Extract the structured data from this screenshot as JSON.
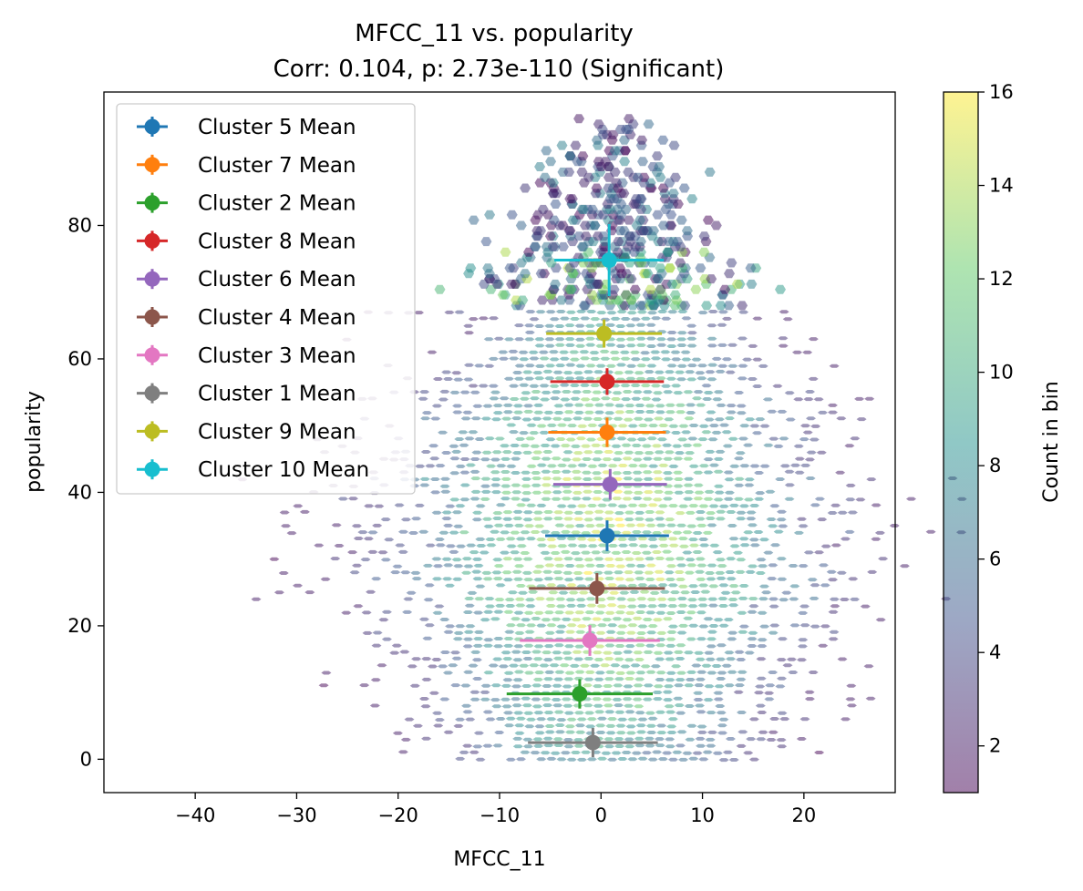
{
  "chart_data": {
    "type": "scatter",
    "title": "MFCC_11 vs. popularity",
    "subtitle": "Corr: 0.104, p: 2.73e-110 (Significant)",
    "xlabel": "MFCC_11",
    "ylabel": "popularity",
    "xlim": [
      -49,
      29
    ],
    "ylim": [
      -5,
      100
    ],
    "xticks": [
      -40,
      -30,
      -20,
      -10,
      0,
      10,
      20
    ],
    "xtick_labels": [
      "−40",
      "−30",
      "−20",
      "−10",
      "0",
      "10",
      "20"
    ],
    "yticks": [
      0,
      20,
      40,
      60,
      80
    ],
    "ytick_labels": [
      "0",
      "20",
      "40",
      "60",
      "80"
    ],
    "grid": false,
    "legend_position": "upper-left",
    "background": {
      "kind": "hexbin",
      "cmap": "viridis",
      "alpha": 0.5,
      "note": "density of MFCC_11 vs popularity, horizontal bands at integer popularity values"
    },
    "colorbar": {
      "label": "Count in bin",
      "range": [
        1,
        16
      ],
      "ticks": [
        2,
        4,
        6,
        8,
        10,
        12,
        14,
        16
      ],
      "tick_labels": [
        "2",
        "4",
        "6",
        "8",
        "10",
        "12",
        "14",
        "16"
      ]
    },
    "series": [
      {
        "name": "Cluster 5 Mean",
        "color": "#1f77b4",
        "x": 0.6,
        "y": 33.5,
        "xerr": 6.1,
        "yerr": 2.3
      },
      {
        "name": "Cluster 7 Mean",
        "color": "#ff7f0e",
        "x": 0.6,
        "y": 49.0,
        "xerr": 5.8,
        "yerr": 2.2
      },
      {
        "name": "Cluster 2 Mean",
        "color": "#2ca02c",
        "x": -2.1,
        "y": 9.8,
        "xerr": 7.2,
        "yerr": 2.2
      },
      {
        "name": "Cluster 8 Mean",
        "color": "#d62728",
        "x": 0.6,
        "y": 56.6,
        "xerr": 5.6,
        "yerr": 2.0
      },
      {
        "name": "Cluster 6 Mean",
        "color": "#9467bd",
        "x": 0.9,
        "y": 41.2,
        "xerr": 5.6,
        "yerr": 2.3
      },
      {
        "name": "Cluster 4 Mean",
        "color": "#8c564b",
        "x": -0.4,
        "y": 25.6,
        "xerr": 6.7,
        "yerr": 2.3
      },
      {
        "name": "Cluster 3 Mean",
        "color": "#e377c2",
        "x": -1.1,
        "y": 17.8,
        "xerr": 6.9,
        "yerr": 2.3
      },
      {
        "name": "Cluster 1 Mean",
        "color": "#7f7f7f",
        "x": -0.8,
        "y": 2.5,
        "xerr": 6.4,
        "yerr": 2.2
      },
      {
        "name": "Cluster 9 Mean",
        "color": "#bcbd22",
        "x": 0.3,
        "y": 63.8,
        "xerr": 5.7,
        "yerr": 2.1
      },
      {
        "name": "Cluster 10 Mean",
        "color": "#17becf",
        "x": 0.8,
        "y": 74.8,
        "xerr": 5.4,
        "yerr": 5.4
      }
    ]
  }
}
